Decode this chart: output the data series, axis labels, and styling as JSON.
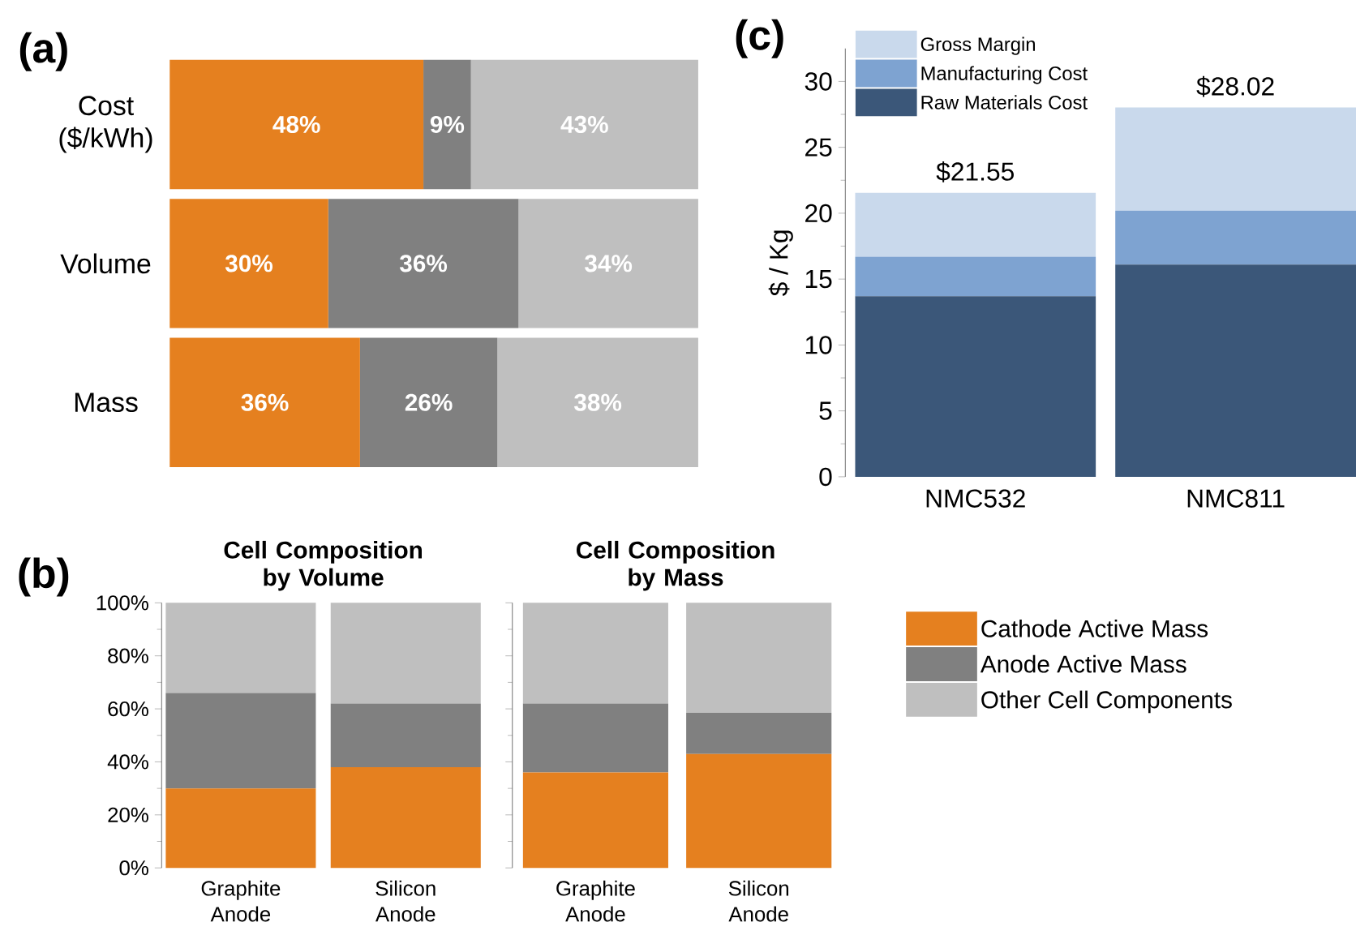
{
  "chart_data": [
    {
      "type": "bar",
      "orientation": "horizontal",
      "stacked": true,
      "categories": [
        "Cost ($/kWh)",
        "Volume",
        "Mass"
      ],
      "xlim": [
        0,
        100
      ],
      "tick_labels": "y",
      "annotations": [
        "(a)"
      ],
      "series": [
        {
          "color": "#e5801f",
          "values": [
            48,
            30,
            36
          ],
          "value_labels": [
            "48%",
            "30%",
            "36%"
          ]
        },
        {
          "color": "#808080",
          "values": [
            9,
            36,
            26
          ],
          "value_labels": [
            "9%",
            "36%",
            "26%"
          ]
        },
        {
          "color": "#bfbfbf",
          "values": [
            43,
            34,
            38
          ],
          "value_labels": [
            "43%",
            "34%",
            "38%"
          ]
        }
      ]
    },
    {
      "type": "bar",
      "stacked": true,
      "title": "Cell Composition by Volume",
      "categories": [
        "Graphite Anode",
        "Silicon Anode"
      ],
      "ylim": [
        0,
        100
      ],
      "annotations": [
        "(b)"
      ],
      "yticks": [
        {
          "value": 0,
          "label": "0%"
        },
        {
          "value": 20,
          "label": "20%"
        },
        {
          "value": 40,
          "label": "40%"
        },
        {
          "value": 60,
          "label": "60%"
        },
        {
          "value": 80,
          "label": "80%"
        },
        {
          "value": 100,
          "label": "100%"
        }
      ],
      "series": [
        {
          "color": "#e5801f",
          "values": [
            30,
            38
          ]
        },
        {
          "color": "#808080",
          "values": [
            36,
            24
          ]
        },
        {
          "color": "#bfbfbf",
          "values": [
            34,
            38
          ]
        }
      ]
    },
    {
      "type": "bar",
      "stacked": true,
      "title": "Cell Composition by Mass",
      "categories": [
        "Graphite Anode",
        "Silicon Anode"
      ],
      "ylim": [
        0,
        100
      ],
      "yticks": [
        0,
        20,
        40,
        60,
        80,
        100
      ],
      "tick_labels": "x",
      "legend": "right",
      "series": [
        {
          "name": "Cathode Active Mass",
          "color": "#e5801f",
          "values": [
            36,
            43
          ]
        },
        {
          "name": "Anode Active Mass",
          "color": "#808080",
          "values": [
            26,
            15.5
          ]
        },
        {
          "name": "Other Cell Components",
          "color": "#bfbfbf",
          "values": [
            38,
            41.5
          ]
        }
      ]
    },
    {
      "type": "bar",
      "stacked": true,
      "categories": [
        "NMC532",
        "NMC811"
      ],
      "ylabel": "$ / Kg",
      "ylim": [
        0,
        32.5
      ],
      "yticks": [
        0,
        5,
        10,
        15,
        20,
        25,
        30
      ],
      "legend": "top left",
      "totals": [
        "$21.55",
        "$28.02"
      ],
      "annotations": [
        "(c)"
      ],
      "series": [
        {
          "name": "Raw Materials Cost",
          "color": "#3b5779",
          "values": [
            13.7,
            16.1
          ]
        },
        {
          "name": "Manufacturing Cost",
          "color": "#7ea3d1",
          "values": [
            3.0,
            4.1
          ]
        },
        {
          "name": "Gross Margin",
          "color": "#c9d9ec",
          "values": [
            4.85,
            7.82
          ]
        }
      ]
    }
  ]
}
